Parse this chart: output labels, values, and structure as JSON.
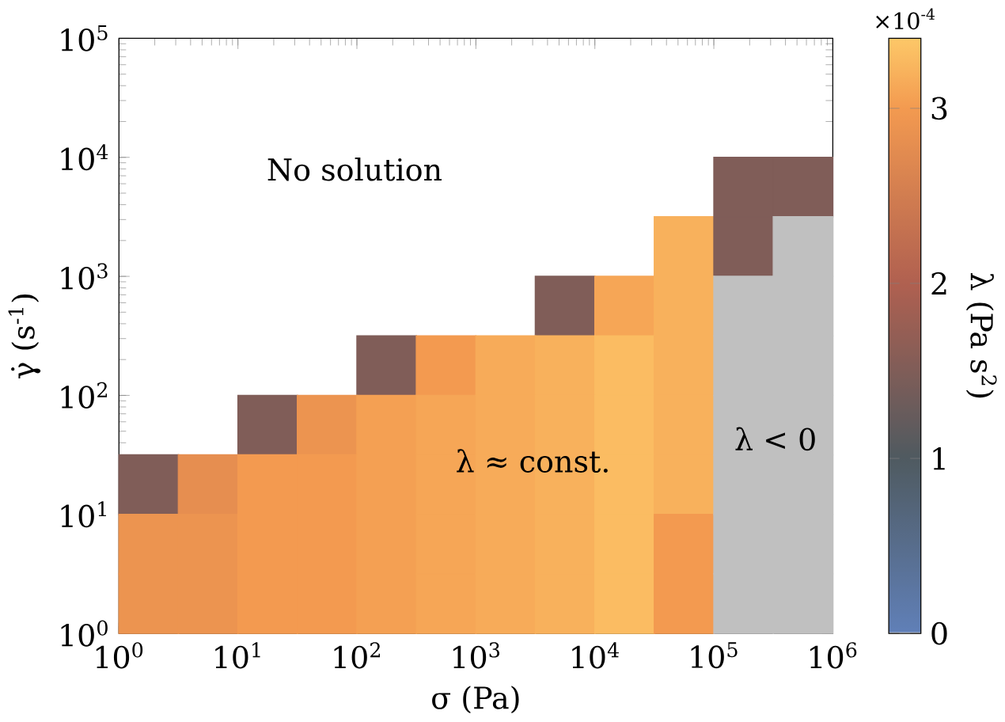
{
  "chart_data": {
    "type": "scatter",
    "xlabel": "σ (Pa)",
    "ylabel": "γ̇ (s$^{-1}$)",
    "clabel": "λ (Pa s$^{2}$)",
    "log": "xy",
    "marker": "square",
    "xlim": [
      1,
      1000000
    ],
    "ylim": [
      1,
      100000
    ],
    "xticks": [
      {
        "value": 1,
        "label": "10$^{0}$"
      },
      {
        "value": 10,
        "label": "10$^{1}$"
      },
      {
        "value": 100,
        "label": "10$^{2}$"
      },
      {
        "value": 1000,
        "label": "10$^{3}$"
      },
      {
        "value": 10000,
        "label": "10$^{4}$"
      },
      {
        "value": 100000,
        "label": "10$^{5}$"
      },
      {
        "value": 1000000,
        "label": "10$^{6}$"
      }
    ],
    "yticks": [
      {
        "value": 1,
        "label": "10$^{0}$"
      },
      {
        "value": 10,
        "label": "10$^{1}$"
      },
      {
        "value": 100,
        "label": "10$^{2}$"
      },
      {
        "value": 1000,
        "label": "10$^{3}$"
      },
      {
        "value": 10000,
        "label": "10$^{4}$"
      },
      {
        "value": 100000,
        "label": "10$^{5}$"
      }
    ],
    "clim": [
      0,
      3.4
    ],
    "cticks": [
      0,
      1,
      2,
      3
    ],
    "series": [
      {
        "x": [
          178000,
          562000,
          56200,
          178000,
          5620,
          17800,
          56200,
          178,
          562,
          1780,
          5620,
          17800,
          56200,
          17.8,
          56.2,
          178,
          562,
          1780,
          5620,
          17800,
          56200,
          1.78,
          5.62,
          17.8,
          56.2,
          178,
          562,
          1780,
          5620,
          17800,
          56200,
          1.78,
          5.62,
          17.8,
          56.2,
          178,
          562,
          1780,
          5620,
          17800,
          56200,
          1.78,
          5.62,
          17.8,
          56.2,
          178,
          562,
          1780,
          5620,
          17800,
          56200
        ],
        "values": [
          5620,
          5620,
          1780,
          1780,
          562,
          562,
          562,
          178,
          178,
          178,
          178,
          178,
          178,
          56.2,
          56.2,
          56.2,
          56.2,
          56.2,
          56.2,
          56.2,
          56.2,
          17.8,
          17.8,
          17.8,
          17.8,
          17.8,
          17.8,
          17.8,
          17.8,
          17.8,
          17.8,
          5.62,
          5.62,
          5.62,
          5.62,
          5.62,
          5.62,
          5.62,
          5.62,
          5.62,
          5.62,
          1.78,
          1.78,
          1.78,
          1.78,
          1.78,
          1.78,
          1.78,
          1.78,
          1.78,
          1.78
        ],
        "colors": [
          "#805d58",
          "#805d58",
          "#f8b15c",
          "#805d58",
          "#805d58",
          "#f6a656",
          "#f8b15c",
          "#805d58",
          "#f39a50",
          "#f7ab59",
          "#f8b15c",
          "#fbbc62",
          "#f8b15c",
          "#805d58",
          "#ec9450",
          "#f4a053",
          "#f6a656",
          "#f7ab59",
          "#f8b15c",
          "#fbbc62",
          "#f8b15c",
          "#805d58",
          "#e68e50",
          "#f39a50",
          "#f39a50",
          "#f4a053",
          "#f6a656",
          "#f7ab59",
          "#f8b15c",
          "#fbbc62",
          "#f8b15c",
          "#ec9450",
          "#ec9450",
          "#f39a50",
          "#f39a50",
          "#f4a053",
          "#f6a656",
          "#f7ab59",
          "#f8b15c",
          "#fbbc62",
          "#f39a50",
          "#ec9450",
          "#ec9450",
          "#f39a50",
          "#f39a50",
          "#f4a053",
          "#f6a656",
          "#f7ab59",
          "#f8b15c",
          "#fbbc62",
          "#f39a50"
        ],
        "cvalues": [
          1.5,
          1.5,
          3.2,
          1.5,
          1.5,
          3.1,
          3.2,
          1.5,
          3.0,
          3.15,
          3.2,
          3.3,
          3.2,
          1.5,
          2.9,
          3.05,
          3.1,
          3.15,
          3.2,
          3.3,
          3.2,
          1.5,
          2.8,
          3.0,
          3.0,
          3.05,
          3.1,
          3.15,
          3.2,
          3.3,
          3.2,
          2.9,
          2.9,
          3.0,
          3.0,
          3.05,
          3.1,
          3.15,
          3.2,
          3.3,
          3.0,
          2.9,
          2.9,
          3.0,
          3.0,
          3.05,
          3.1,
          3.15,
          3.2,
          3.3,
          3.0
        ]
      },
      {
        "name": "λ < 0",
        "color": "#c0c0c0",
        "x": [
          562000,
          178000,
          562000,
          178000,
          562000,
          178000,
          562000,
          178000,
          562000,
          178000,
          562000,
          178000,
          562000
        ],
        "values": [
          1780,
          562,
          562,
          178,
          178,
          56.2,
          56.2,
          17.8,
          17.8,
          5.62,
          5.62,
          1.78,
          1.78
        ]
      }
    ],
    "annotations": [
      "No solution",
      "λ ≈ const.",
      "×10$^{-4}$"
    ]
  }
}
